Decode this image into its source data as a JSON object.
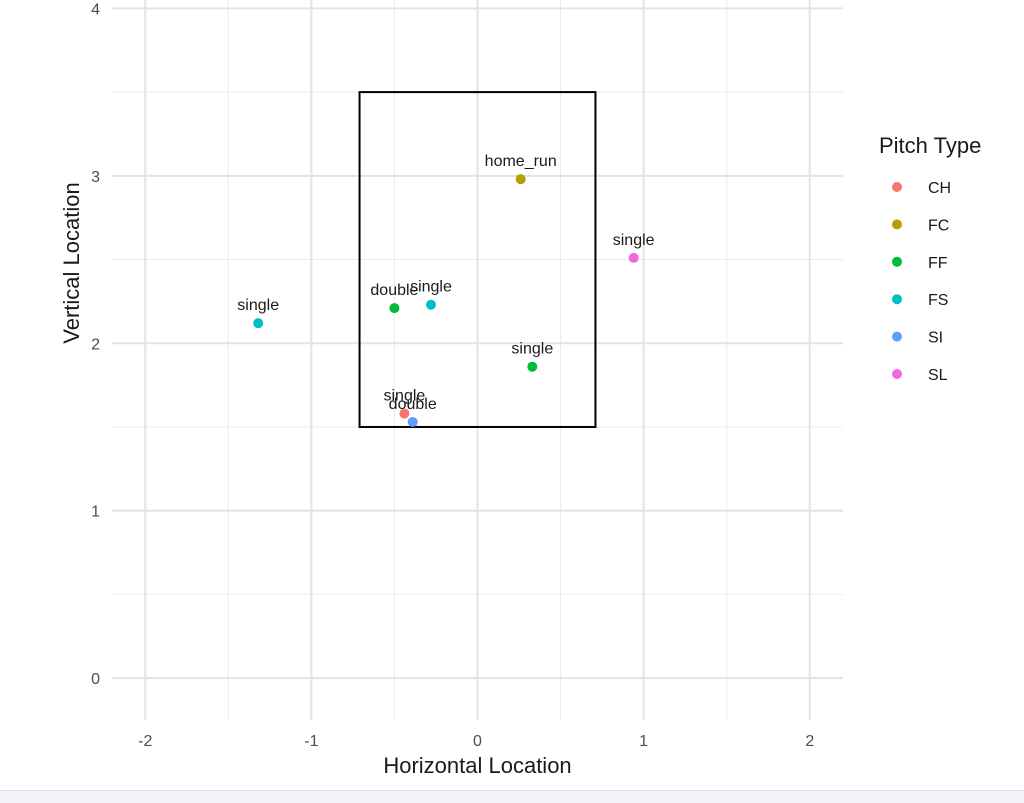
{
  "chart_data": {
    "type": "scatter",
    "title": "",
    "xlabel": "Horizontal Location",
    "ylabel": "Vertical Location",
    "xlim": [
      -2.2,
      2.2
    ],
    "ylim": [
      -0.25,
      4.05
    ],
    "x_ticks": [
      -2,
      -1,
      0,
      1,
      2
    ],
    "x_tick_labels": [
      "-2",
      "-1",
      "0",
      "1",
      "2"
    ],
    "y_ticks": [
      0,
      1,
      2,
      3,
      4
    ],
    "y_tick_labels": [
      "0",
      "1",
      "2",
      "3",
      "4"
    ],
    "grid": true,
    "strike_zone": {
      "x0": -0.71,
      "x1": 0.71,
      "y0": 1.5,
      "y1": 3.5
    },
    "legend": {
      "title": "Pitch Type",
      "position": "right",
      "entries": [
        {
          "key": "CH",
          "color": "#F8766D"
        },
        {
          "key": "FC",
          "color": "#B79F00"
        },
        {
          "key": "FF",
          "color": "#00BA38"
        },
        {
          "key": "FS",
          "color": "#00BFC4"
        },
        {
          "key": "SI",
          "color": "#619CFF"
        },
        {
          "key": "SL",
          "color": "#F564E3"
        }
      ]
    },
    "points": [
      {
        "x": 0.26,
        "y": 2.98,
        "pitch_type": "FC",
        "label": "home_run"
      },
      {
        "x": 0.94,
        "y": 2.51,
        "pitch_type": "SL",
        "label": "single"
      },
      {
        "x": -1.32,
        "y": 2.12,
        "pitch_type": "FS",
        "label": "single"
      },
      {
        "x": -0.5,
        "y": 2.21,
        "pitch_type": "FF",
        "label": "double"
      },
      {
        "x": -0.28,
        "y": 2.23,
        "pitch_type": "FS",
        "label": "single"
      },
      {
        "x": 0.33,
        "y": 1.86,
        "pitch_type": "FF",
        "label": "single"
      },
      {
        "x": -0.44,
        "y": 1.58,
        "pitch_type": "CH",
        "label": "single"
      },
      {
        "x": -0.39,
        "y": 1.53,
        "pitch_type": "SI",
        "label": "double"
      }
    ]
  }
}
